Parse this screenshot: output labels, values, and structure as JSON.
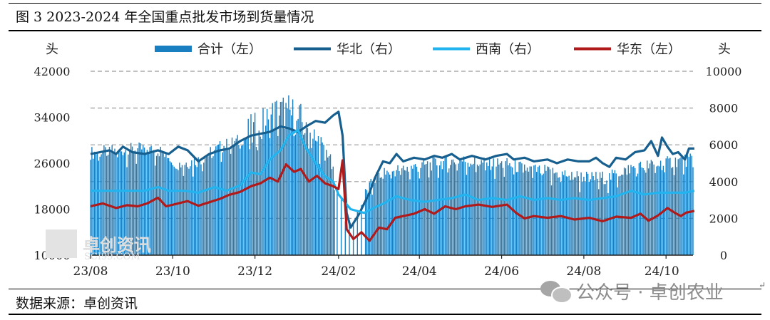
{
  "figure": {
    "title": "图 3 2023-2024 年全国重点批发市场到货量情况",
    "source": "数据来源：卓创资讯",
    "watermark_logo": "卓创资讯 SCI99.COM",
    "wechat_badge": "公众号 · 卓创农业"
  },
  "colors": {
    "total": "#1a7fc0",
    "north": "#175f8e",
    "southwest": "#22b4ee",
    "east": "#b11a1a"
  },
  "chart_data": {
    "type": "bar+line",
    "left_axis": {
      "unit": "头",
      "ylim": [
        10000,
        42000
      ],
      "ticks": [
        10000,
        18000,
        26000,
        34000,
        42000
      ]
    },
    "right_axis": {
      "unit": "头",
      "ylim": [
        0,
        10000
      ],
      "ticks": [
        0,
        2000,
        4000,
        6000,
        8000,
        10000
      ]
    },
    "x_ticks": [
      "23/08",
      "23/10",
      "23/12",
      "24/02",
      "24/04",
      "24/06",
      "24/08",
      "24/10"
    ],
    "grid": "dashed horizontal",
    "legend_position": "top",
    "series": [
      {
        "name": "合计（左）",
        "type": "bar",
        "axis": "left",
        "color_key": "total",
        "keypoints": [
          [
            "2023-08-01",
            27800
          ],
          [
            "2023-08-20",
            28200
          ],
          [
            "2023-09-10",
            28500
          ],
          [
            "2023-09-25",
            28000
          ],
          [
            "2023-10-05",
            25800
          ],
          [
            "2023-10-20",
            26500
          ],
          [
            "2023-11-05",
            28800
          ],
          [
            "2023-11-20",
            30000
          ],
          [
            "2023-12-05",
            32000
          ],
          [
            "2023-12-15",
            34500
          ],
          [
            "2023-12-25",
            35000
          ],
          [
            "2024-01-05",
            33000
          ],
          [
            "2024-01-15",
            30000
          ],
          [
            "2024-01-25",
            27500
          ],
          [
            "2024-02-01",
            20000
          ],
          [
            "2024-02-08",
            15500
          ],
          [
            "2024-02-18",
            19500
          ],
          [
            "2024-03-01",
            24000
          ],
          [
            "2024-03-15",
            24800
          ],
          [
            "2024-04-01",
            25500
          ],
          [
            "2024-04-15",
            26000
          ],
          [
            "2024-05-01",
            26500
          ],
          [
            "2024-05-20",
            26000
          ],
          [
            "2024-06-05",
            25800
          ],
          [
            "2024-06-20",
            25000
          ],
          [
            "2024-07-05",
            24500
          ],
          [
            "2024-07-20",
            24000
          ],
          [
            "2024-08-05",
            23500
          ],
          [
            "2024-08-20",
            23500
          ],
          [
            "2024-09-01",
            25000
          ],
          [
            "2024-09-15",
            25500
          ],
          [
            "2024-10-01",
            26000
          ],
          [
            "2024-10-10",
            26500
          ]
        ]
      },
      {
        "name": "华北（右）",
        "type": "line",
        "axis": "right",
        "color_key": "north",
        "points": [
          [
            "2023-08-01",
            5500
          ],
          [
            "2023-08-15",
            5700
          ],
          [
            "2023-08-20",
            5500
          ],
          [
            "2023-08-25",
            5900
          ],
          [
            "2023-09-01",
            5600
          ],
          [
            "2023-09-10",
            5500
          ],
          [
            "2023-09-20",
            5700
          ],
          [
            "2023-09-28",
            5500
          ],
          [
            "2023-10-05",
            5900
          ],
          [
            "2023-10-12",
            5700
          ],
          [
            "2023-10-20",
            5100
          ],
          [
            "2023-10-28",
            5500
          ],
          [
            "2023-11-05",
            5700
          ],
          [
            "2023-11-12",
            5800
          ],
          [
            "2023-11-20",
            6200
          ],
          [
            "2023-11-28",
            6500
          ],
          [
            "2023-12-05",
            6600
          ],
          [
            "2023-12-12",
            6700
          ],
          [
            "2023-12-20",
            7000
          ],
          [
            "2023-12-26",
            6900
          ],
          [
            "2024-01-02",
            6700
          ],
          [
            "2024-01-08",
            7000
          ],
          [
            "2024-01-15",
            7300
          ],
          [
            "2024-01-22",
            7200
          ],
          [
            "2024-01-28",
            7600
          ],
          [
            "2024-02-01",
            7800
          ],
          [
            "2024-02-04",
            6500
          ],
          [
            "2024-02-07",
            2300
          ],
          [
            "2024-02-10",
            1500
          ],
          [
            "2024-02-16",
            2200
          ],
          [
            "2024-02-24",
            3400
          ],
          [
            "2024-02-28",
            4200
          ],
          [
            "2024-03-05",
            5100
          ],
          [
            "2024-03-10",
            5000
          ],
          [
            "2024-03-15",
            5500
          ],
          [
            "2024-03-20",
            5100
          ],
          [
            "2024-03-28",
            5300
          ],
          [
            "2024-04-05",
            5200
          ],
          [
            "2024-04-12",
            5400
          ],
          [
            "2024-04-18",
            5300
          ],
          [
            "2024-04-25",
            5500
          ],
          [
            "2024-05-01",
            5200
          ],
          [
            "2024-05-10",
            5400
          ],
          [
            "2024-05-20",
            5200
          ],
          [
            "2024-05-28",
            5400
          ],
          [
            "2024-06-05",
            5500
          ],
          [
            "2024-06-10",
            5200
          ],
          [
            "2024-06-18",
            5300
          ],
          [
            "2024-06-25",
            5100
          ],
          [
            "2024-07-05",
            5200
          ],
          [
            "2024-07-12",
            5000
          ],
          [
            "2024-07-20",
            5200
          ],
          [
            "2024-07-28",
            5100
          ],
          [
            "2024-08-05",
            5100
          ],
          [
            "2024-08-10",
            5300
          ],
          [
            "2024-08-15",
            5000
          ],
          [
            "2024-08-20",
            4800
          ],
          [
            "2024-08-25",
            5300
          ],
          [
            "2024-09-01",
            5200
          ],
          [
            "2024-09-08",
            5600
          ],
          [
            "2024-09-15",
            5700
          ],
          [
            "2024-09-20",
            6200
          ],
          [
            "2024-09-25",
            5400
          ],
          [
            "2024-09-28",
            6400
          ],
          [
            "2024-10-02",
            5900
          ],
          [
            "2024-10-06",
            5500
          ],
          [
            "2024-10-10",
            5600
          ],
          [
            "2024-10-15",
            5200
          ],
          [
            "2024-10-18",
            5800
          ],
          [
            "2024-10-22",
            5800
          ]
        ]
      },
      {
        "name": "西南（右）",
        "type": "line",
        "axis": "right",
        "color_key": "southwest",
        "points": [
          [
            "2023-08-01",
            3500
          ],
          [
            "2023-08-20",
            3500
          ],
          [
            "2023-09-10",
            3500
          ],
          [
            "2023-09-20",
            3700
          ],
          [
            "2023-09-28",
            3500
          ],
          [
            "2023-10-10",
            3500
          ],
          [
            "2023-10-20",
            3400
          ],
          [
            "2023-11-01",
            3700
          ],
          [
            "2023-11-10",
            3500
          ],
          [
            "2023-11-20",
            3800
          ],
          [
            "2023-11-28",
            4500
          ],
          [
            "2023-12-05",
            4400
          ],
          [
            "2023-12-12",
            5200
          ],
          [
            "2023-12-20",
            5700
          ],
          [
            "2023-12-26",
            6500
          ],
          [
            "2024-01-02",
            6800
          ],
          [
            "2024-01-08",
            5800
          ],
          [
            "2024-01-15",
            5000
          ],
          [
            "2024-01-22",
            4300
          ],
          [
            "2024-01-28",
            4000
          ],
          [
            "2024-02-01",
            3300
          ],
          [
            "2024-02-10",
            2500
          ],
          [
            "2024-02-20",
            2300
          ],
          [
            "2024-02-28",
            2600
          ],
          [
            "2024-03-05",
            2800
          ],
          [
            "2024-03-15",
            3200
          ],
          [
            "2024-03-25",
            3000
          ],
          [
            "2024-04-05",
            2900
          ],
          [
            "2024-04-15",
            3000
          ],
          [
            "2024-04-25",
            3100
          ],
          [
            "2024-05-05",
            3300
          ],
          [
            "2024-05-15",
            3000
          ],
          [
            "2024-05-25",
            3100
          ],
          [
            "2024-06-05",
            3000
          ],
          [
            "2024-06-15",
            3200
          ],
          [
            "2024-06-25",
            3000
          ],
          [
            "2024-07-05",
            3100
          ],
          [
            "2024-07-15",
            3000
          ],
          [
            "2024-07-25",
            3100
          ],
          [
            "2024-08-05",
            3000
          ],
          [
            "2024-08-15",
            3100
          ],
          [
            "2024-08-25",
            3200
          ],
          [
            "2024-09-05",
            3500
          ],
          [
            "2024-09-15",
            3300
          ],
          [
            "2024-09-25",
            3400
          ],
          [
            "2024-10-05",
            3400
          ],
          [
            "2024-10-15",
            3400
          ],
          [
            "2024-10-22",
            3500
          ]
        ]
      },
      {
        "name": "华东（左）",
        "type": "line",
        "axis": "left",
        "color_key": "east",
        "points": [
          [
            "2023-08-01",
            18500
          ],
          [
            "2023-08-10",
            19000
          ],
          [
            "2023-08-20",
            18200
          ],
          [
            "2023-08-28",
            18700
          ],
          [
            "2023-09-05",
            18500
          ],
          [
            "2023-09-12",
            19000
          ],
          [
            "2023-09-20",
            20000
          ],
          [
            "2023-09-26",
            18500
          ],
          [
            "2023-10-05",
            19000
          ],
          [
            "2023-10-12",
            19400
          ],
          [
            "2023-10-20",
            18600
          ],
          [
            "2023-10-28",
            19200
          ],
          [
            "2023-11-05",
            19800
          ],
          [
            "2023-11-12",
            20500
          ],
          [
            "2023-11-20",
            21000
          ],
          [
            "2023-11-28",
            22000
          ],
          [
            "2023-12-05",
            22500
          ],
          [
            "2023-12-12",
            23500
          ],
          [
            "2023-12-18",
            22800
          ],
          [
            "2023-12-24",
            25800
          ],
          [
            "2023-12-30",
            24500
          ],
          [
            "2024-01-04",
            25000
          ],
          [
            "2024-01-10",
            22800
          ],
          [
            "2024-01-16",
            23800
          ],
          [
            "2024-01-22",
            22500
          ],
          [
            "2024-01-28",
            22000
          ],
          [
            "2024-02-01",
            21500
          ],
          [
            "2024-02-04",
            26500
          ],
          [
            "2024-02-07",
            14500
          ],
          [
            "2024-02-12",
            12800
          ],
          [
            "2024-02-18",
            14000
          ],
          [
            "2024-02-24",
            12500
          ],
          [
            "2024-03-02",
            14800
          ],
          [
            "2024-03-08",
            14500
          ],
          [
            "2024-03-14",
            16500
          ],
          [
            "2024-03-20",
            16800
          ],
          [
            "2024-03-28",
            17200
          ],
          [
            "2024-04-05",
            18000
          ],
          [
            "2024-04-12",
            17200
          ],
          [
            "2024-04-20",
            18500
          ],
          [
            "2024-04-28",
            18000
          ],
          [
            "2024-05-05",
            18500
          ],
          [
            "2024-05-15",
            18800
          ],
          [
            "2024-05-25",
            18400
          ],
          [
            "2024-06-05",
            18800
          ],
          [
            "2024-06-12",
            17300
          ],
          [
            "2024-06-18",
            16400
          ],
          [
            "2024-06-25",
            16800
          ],
          [
            "2024-07-05",
            16500
          ],
          [
            "2024-07-15",
            16800
          ],
          [
            "2024-07-25",
            16200
          ],
          [
            "2024-08-05",
            16500
          ],
          [
            "2024-08-15",
            15900
          ],
          [
            "2024-08-25",
            16700
          ],
          [
            "2024-09-05",
            16500
          ],
          [
            "2024-09-12",
            17200
          ],
          [
            "2024-09-18",
            16000
          ],
          [
            "2024-09-25",
            16900
          ],
          [
            "2024-10-02",
            18200
          ],
          [
            "2024-10-08",
            17300
          ],
          [
            "2024-10-12",
            16800
          ],
          [
            "2024-10-16",
            17400
          ],
          [
            "2024-10-22",
            17700
          ]
        ]
      }
    ]
  }
}
